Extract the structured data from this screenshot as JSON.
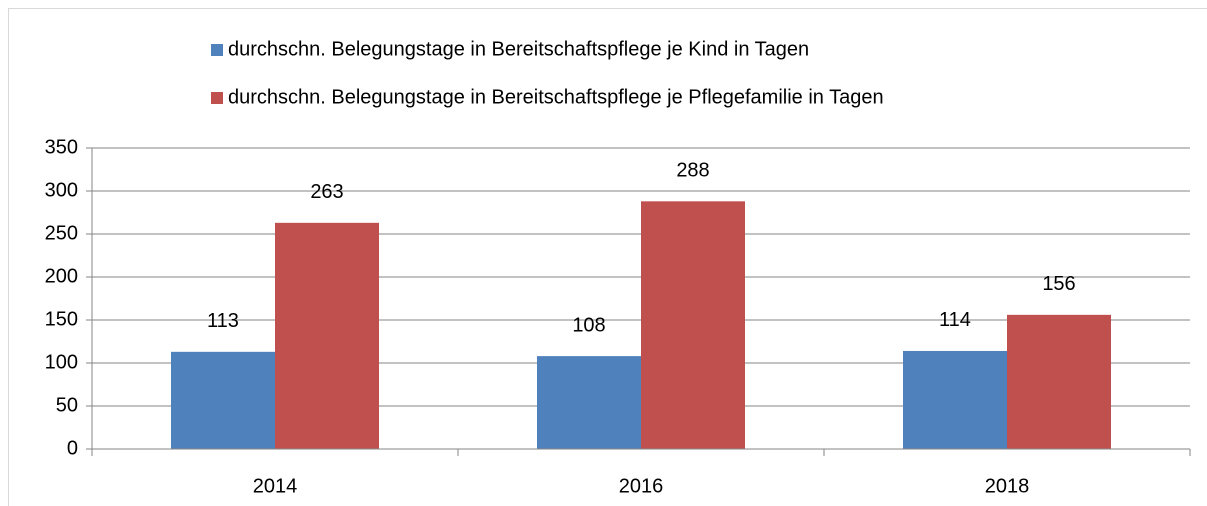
{
  "chart_data": {
    "type": "bar",
    "categories": [
      "2014",
      "2016",
      "2018"
    ],
    "series": [
      {
        "name": "durchschn. Belegungstage in Bereitschaftspflege je Kind in Tagen",
        "color": "#4f81bd",
        "values": [
          113,
          108,
          114
        ]
      },
      {
        "name": "durchschn. Belegungstage in Bereitschaftspflege je Pflegefamilie in Tagen",
        "color": "#c0504d",
        "values": [
          263,
          288,
          156
        ]
      }
    ],
    "ylim": [
      0,
      350
    ],
    "yticks": [
      0,
      50,
      100,
      150,
      200,
      250,
      300,
      350
    ],
    "grid": true,
    "legend": "top"
  }
}
